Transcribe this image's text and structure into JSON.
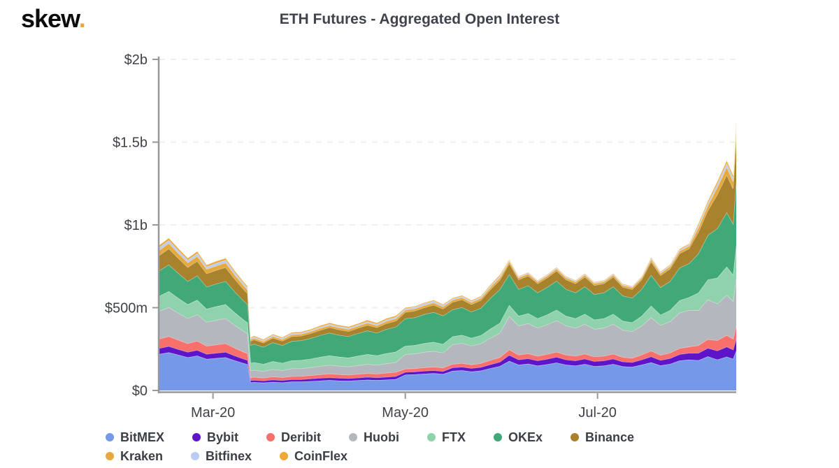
{
  "brand": {
    "logo_text": "skew",
    "logo_dot": ".",
    "dot_color": "#eea33b"
  },
  "chart_data": {
    "type": "area",
    "stacked": true,
    "title": "ETH Futures - Aggregated Open Interest",
    "unit": "USD millions",
    "grid": "dashed-horizontal",
    "legend_position": "bottom",
    "ylim": [
      0,
      2000
    ],
    "y_ticks": [
      {
        "value": 0,
        "label": "$0"
      },
      {
        "value": 500,
        "label": "$500m"
      },
      {
        "value": 1000,
        "label": "$1b"
      },
      {
        "value": 1500,
        "label": "$1.5b"
      },
      {
        "value": 2000,
        "label": "$2b"
      }
    ],
    "x_ticks": [
      {
        "date": "2020-03-01",
        "label": "Mar-20"
      },
      {
        "date": "2020-05-01",
        "label": "May-20"
      },
      {
        "date": "2020-07-01",
        "label": "Jul-20"
      }
    ],
    "x": [
      "2020-02-13",
      "2020-02-16",
      "2020-02-19",
      "2020-02-22",
      "2020-02-25",
      "2020-02-28",
      "2020-03-02",
      "2020-03-05",
      "2020-03-08",
      "2020-03-11",
      "2020-03-12",
      "2020-03-13",
      "2020-03-14",
      "2020-03-17",
      "2020-03-20",
      "2020-03-23",
      "2020-03-26",
      "2020-03-29",
      "2020-04-01",
      "2020-04-04",
      "2020-04-07",
      "2020-04-10",
      "2020-04-13",
      "2020-04-16",
      "2020-04-19",
      "2020-04-22",
      "2020-04-25",
      "2020-04-28",
      "2020-05-01",
      "2020-05-04",
      "2020-05-07",
      "2020-05-10",
      "2020-05-13",
      "2020-05-16",
      "2020-05-19",
      "2020-05-22",
      "2020-05-25",
      "2020-05-28",
      "2020-05-31",
      "2020-06-03",
      "2020-06-06",
      "2020-06-09",
      "2020-06-12",
      "2020-06-15",
      "2020-06-18",
      "2020-06-21",
      "2020-06-24",
      "2020-06-27",
      "2020-06-30",
      "2020-07-03",
      "2020-07-06",
      "2020-07-09",
      "2020-07-12",
      "2020-07-15",
      "2020-07-18",
      "2020-07-21",
      "2020-07-24",
      "2020-07-27",
      "2020-07-30",
      "2020-08-02",
      "2020-08-05",
      "2020-08-08",
      "2020-08-11",
      "2020-08-13",
      "2020-08-14"
    ],
    "series": [
      {
        "name": "BitMEX",
        "color": "#7598e9",
        "values": [
          220,
          230,
          215,
          200,
          210,
          190,
          195,
          200,
          180,
          163,
          158,
          48,
          50,
          47,
          51,
          48,
          53,
          53,
          56,
          59,
          62,
          59,
          58,
          61,
          64,
          62,
          65,
          68,
          95,
          97,
          101,
          104,
          99,
          118,
          121,
          114,
          120,
          134,
          147,
          178,
          155,
          161,
          150,
          158,
          168,
          155,
          150,
          159,
          147,
          150,
          159,
          145,
          142,
          155,
          169,
          151,
          160,
          180,
          186,
          182,
          206,
          186,
          204,
          191,
          240
        ]
      },
      {
        "name": "Bybit",
        "color": "#5e14c8",
        "values": [
          35,
          37,
          34,
          32,
          34,
          30,
          31,
          32,
          29,
          26,
          25,
          13,
          13,
          12,
          14,
          13,
          14,
          14,
          15,
          16,
          16,
          16,
          15,
          16,
          17,
          16,
          17,
          18,
          16,
          16,
          17,
          17,
          17,
          20,
          21,
          20,
          21,
          23,
          25,
          36,
          31,
          32,
          30,
          32,
          34,
          31,
          30,
          32,
          29,
          30,
          32,
          29,
          28,
          31,
          36,
          32,
          34,
          38,
          40,
          44,
          50,
          54,
          60,
          56,
          70
        ]
      },
      {
        "name": "Deribit",
        "color": "#f8706c",
        "values": [
          57,
          60,
          56,
          52,
          55,
          49,
          51,
          52,
          47,
          42,
          41,
          18,
          18,
          17,
          19,
          18,
          19,
          20,
          20,
          21,
          23,
          22,
          21,
          22,
          23,
          23,
          24,
          25,
          20,
          20,
          21,
          22,
          21,
          22,
          23,
          22,
          23,
          26,
          28,
          33,
          29,
          30,
          28,
          29,
          31,
          29,
          28,
          30,
          28,
          28,
          30,
          27,
          26,
          29,
          35,
          31,
          33,
          37,
          38,
          46,
          53,
          63,
          70,
          65,
          82
        ]
      },
      {
        "name": "Huobi",
        "color": "#b4b7bd",
        "values": [
          167,
          175,
          163,
          152,
          160,
          144,
          148,
          152,
          137,
          124,
          120,
          42,
          43,
          40,
          44,
          42,
          46,
          46,
          48,
          51,
          53,
          51,
          50,
          53,
          55,
          53,
          57,
          59,
          88,
          89,
          93,
          95,
          91,
          118,
          121,
          114,
          120,
          134,
          147,
          201,
          176,
          182,
          170,
          179,
          190,
          176,
          170,
          180,
          167,
          170,
          180,
          164,
          161,
          176,
          201,
          180,
          190,
          214,
          221,
          212,
          240,
          221,
          243,
          228,
          285
        ]
      },
      {
        "name": "FTX",
        "color": "#8fd2ab",
        "values": [
          92,
          97,
          90,
          84,
          88,
          80,
          82,
          84,
          76,
          68,
          66,
          45,
          46,
          43,
          48,
          45,
          49,
          50,
          52,
          55,
          57,
          55,
          54,
          57,
          60,
          57,
          61,
          63,
          50,
          51,
          53,
          55,
          52,
          48,
          49,
          47,
          49,
          55,
          60,
          68,
          59,
          61,
          57,
          60,
          64,
          59,
          57,
          61,
          56,
          57,
          61,
          55,
          54,
          59,
          71,
          63,
          67,
          75,
          78,
          106,
          120,
          156,
          171,
          160,
          200
        ]
      },
      {
        "name": "OKEx",
        "color": "#41a878",
        "values": [
          154,
          161,
          151,
          140,
          147,
          133,
          137,
          140,
          126,
          114,
          110,
          107,
          111,
          104,
          114,
          107,
          117,
          119,
          124,
          131,
          137,
          132,
          129,
          136,
          142,
          137,
          146,
          151,
          165,
          168,
          175,
          180,
          172,
          162,
          167,
          158,
          165,
          186,
          203,
          186,
          162,
          168,
          156,
          165,
          175,
          162,
          156,
          166,
          154,
          156,
          166,
          152,
          148,
          162,
          185,
          166,
          175,
          197,
          204,
          237,
          269,
          299,
          328,
          307,
          385
        ]
      },
      {
        "name": "Binance",
        "color": "#a8822d",
        "values": [
          92,
          97,
          90,
          84,
          88,
          80,
          82,
          84,
          76,
          68,
          66,
          26,
          26,
          25,
          27,
          26,
          28,
          28,
          30,
          31,
          33,
          32,
          31,
          32,
          34,
          33,
          35,
          36,
          39,
          40,
          41,
          43,
          41,
          46,
          47,
          45,
          47,
          52,
          57,
          65,
          57,
          59,
          55,
          57,
          61,
          57,
          55,
          58,
          54,
          55,
          58,
          53,
          52,
          57,
          81,
          72,
          76,
          86,
          89,
          131,
          149,
          206,
          227,
          212,
          266
        ]
      },
      {
        "name": "Kraken",
        "color": "#e6a93e",
        "values": [
          31,
          32,
          30,
          28,
          29,
          27,
          27,
          28,
          25,
          23,
          22,
          10,
          10,
          9,
          10,
          10,
          11,
          11,
          11,
          12,
          12,
          12,
          12,
          12,
          13,
          12,
          13,
          14,
          13,
          13,
          13,
          14,
          13,
          12,
          13,
          12,
          13,
          14,
          15,
          13,
          12,
          12,
          11,
          12,
          13,
          12,
          11,
          12,
          11,
          11,
          12,
          11,
          11,
          12,
          14,
          13,
          14,
          15,
          16,
          26,
          30,
          43,
          47,
          44,
          55
        ]
      },
      {
        "name": "Bitfinex",
        "color": "#b9cdf4",
        "values": [
          18,
          18,
          17,
          16,
          17,
          15,
          16,
          16,
          14,
          13,
          13,
          6,
          7,
          6,
          7,
          6,
          7,
          7,
          7,
          8,
          8,
          8,
          8,
          8,
          9,
          8,
          9,
          9,
          9,
          9,
          10,
          10,
          9,
          7,
          7,
          7,
          7,
          8,
          9,
          6,
          5,
          5,
          5,
          5,
          5,
          5,
          5,
          5,
          5,
          5,
          5,
          5,
          4,
          5,
          7,
          6,
          7,
          8,
          8,
          12,
          14,
          20,
          22,
          21,
          26
        ]
      },
      {
        "name": "CoinFlex",
        "color": "#eda836",
        "values": [
          13,
          14,
          13,
          12,
          13,
          11,
          12,
          12,
          11,
          10,
          9,
          6,
          7,
          6,
          7,
          6,
          7,
          7,
          7,
          8,
          8,
          8,
          8,
          8,
          9,
          8,
          9,
          9,
          6,
          6,
          6,
          7,
          6,
          6,
          6,
          6,
          6,
          7,
          8,
          5,
          4,
          4,
          4,
          4,
          4,
          4,
          4,
          4,
          4,
          4,
          4,
          4,
          4,
          4,
          6,
          5,
          5,
          6,
          6,
          12,
          14,
          16,
          18,
          17,
          21
        ]
      }
    ],
    "legend_rows": [
      [
        "BitMEX",
        "Bybit",
        "Deribit",
        "Huobi",
        "FTX",
        "OKEx",
        "Binance"
      ],
      [
        "Kraken",
        "Bitfinex",
        "CoinFlex"
      ]
    ]
  }
}
